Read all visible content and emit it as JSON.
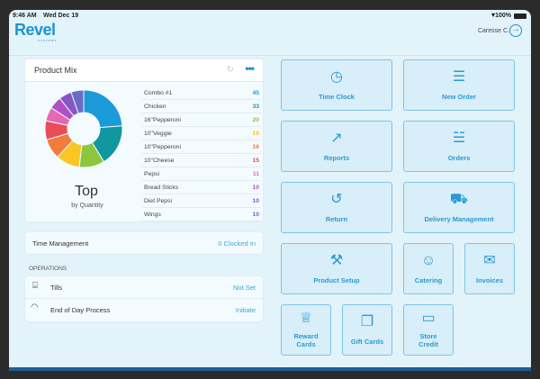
{
  "status": {
    "time": "9:46 AM",
    "date": "Wed Dec 19",
    "battery": "100%"
  },
  "header": {
    "logo": "Revel",
    "logo_sub": "SYSTEMS",
    "user": "Caresse C."
  },
  "product_mix": {
    "title": "Product Mix",
    "headline": "Top",
    "subtitle": "by Quantity",
    "items": [
      {
        "name": "Combo #1",
        "value": "45",
        "color": "#1b9ad9"
      },
      {
        "name": "Chicken",
        "value": "33",
        "color": "#12979f"
      },
      {
        "name": "16\"Pepperoni",
        "value": "20",
        "color": "#8cc63f"
      },
      {
        "name": "10\"Veggie",
        "value": "19",
        "color": "#f9c623"
      },
      {
        "name": "10\"Pepperoni",
        "value": "16",
        "color": "#f47b3a"
      },
      {
        "name": "10\"Cheese",
        "value": "15",
        "color": "#ea4c5a"
      },
      {
        "name": "Pepsi",
        "value": "11",
        "color": "#e568b4"
      },
      {
        "name": "Bread Sticks",
        "value": "10",
        "color": "#b14fc6"
      },
      {
        "name": "Diet Pepsi",
        "value": "10",
        "color": "#8856c8"
      },
      {
        "name": "Wings",
        "value": "10",
        "color": "#6a6ac9"
      }
    ]
  },
  "time_management": {
    "label": "Time Management",
    "value": "0 Clocked In"
  },
  "operations": {
    "label": "OPERATIONS",
    "rows": [
      {
        "label": "Tills",
        "value": "Not Set"
      },
      {
        "label": "End of Day Process",
        "value": "Initiate"
      }
    ]
  },
  "tiles": [
    {
      "label": "Time Clock",
      "icon": "clock-icon"
    },
    {
      "label": "New Order",
      "icon": "document-icon"
    },
    {
      "label": "Reports",
      "icon": "chart-icon"
    },
    {
      "label": "Orders",
      "icon": "documents-icon"
    },
    {
      "label": "Return",
      "icon": "return-icon"
    },
    {
      "label": "Delivery Management",
      "icon": "truck-icon"
    },
    {
      "label": "Product Setup",
      "icon": "wrench-icon"
    },
    {
      "label": "Catering",
      "icon": "chef-icon"
    },
    {
      "label": "Invoices",
      "icon": "envelope-icon"
    },
    {
      "label": "Reward Cards",
      "icon": "trophy-icon"
    },
    {
      "label": "Gift Cards",
      "icon": "gift-icon"
    },
    {
      "label": "Store Credit",
      "icon": "card-plus-icon"
    }
  ]
}
